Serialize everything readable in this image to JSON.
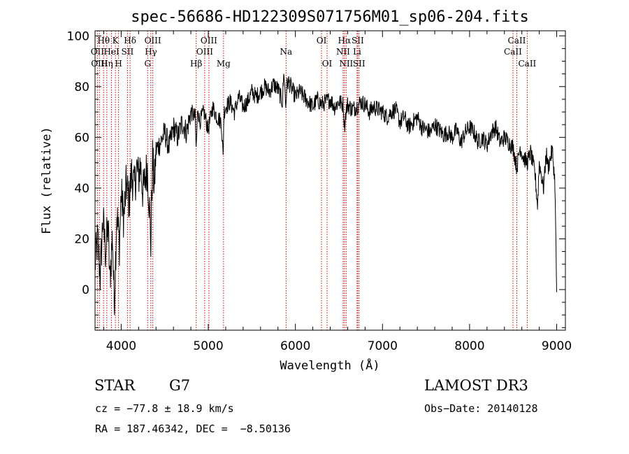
{
  "chart_data": {
    "type": "line",
    "title": "spec-56686-HD122309S071756M01_sp06-204.fits",
    "xlabel": "Wavelength (Å)",
    "ylabel": "Flux (relative)",
    "xlim": [
      3700,
      9100
    ],
    "ylim": [
      -16,
      102
    ],
    "xticks": [
      4000,
      5000,
      6000,
      7000,
      8000,
      9000
    ],
    "yticks": [
      0,
      20,
      40,
      60,
      80,
      100
    ],
    "grid": false,
    "series": [
      {
        "name": "flux",
        "color": "#000000",
        "x": [
          3700,
          3730,
          3760,
          3790,
          3820,
          3850,
          3870,
          3900,
          3920,
          3950,
          3980,
          4000,
          4030,
          4060,
          4090,
          4120,
          4150,
          4180,
          4200,
          4220,
          4250,
          4280,
          4300,
          4320,
          4340,
          4360,
          4380,
          4400,
          4450,
          4500,
          4550,
          4600,
          4650,
          4700,
          4750,
          4800,
          4850,
          4860,
          4880,
          4900,
          4950,
          5000,
          5050,
          5100,
          5150,
          5170,
          5180,
          5200,
          5250,
          5300,
          5350,
          5400,
          5450,
          5500,
          5550,
          5600,
          5650,
          5700,
          5750,
          5800,
          5850,
          5870,
          5890,
          5900,
          5920,
          5950,
          6000,
          6050,
          6100,
          6150,
          6200,
          6250,
          6300,
          6350,
          6400,
          6450,
          6500,
          6550,
          6563,
          6580,
          6600,
          6650,
          6700,
          6750,
          6800,
          6850,
          6900,
          6950,
          7000,
          7050,
          7100,
          7150,
          7200,
          7250,
          7300,
          7350,
          7400,
          7450,
          7500,
          7550,
          7600,
          7650,
          7700,
          7750,
          7800,
          7850,
          7900,
          7950,
          8000,
          8050,
          8100,
          8150,
          8200,
          8250,
          8300,
          8350,
          8400,
          8450,
          8500,
          8542,
          8580,
          8620,
          8662,
          8700,
          8750,
          8780,
          8800,
          8850,
          8880,
          8900,
          8950,
          8980,
          9000
        ],
        "y": [
          10,
          20,
          5,
          28,
          15,
          25,
          3,
          22,
          -6,
          30,
          18,
          38,
          28,
          42,
          35,
          46,
          40,
          48,
          44,
          50,
          38,
          45,
          48,
          35,
          18,
          52,
          40,
          55,
          58,
          62,
          56,
          64,
          60,
          66,
          62,
          70,
          68,
          55,
          72,
          66,
          70,
          63,
          72,
          68,
          66,
          52,
          70,
          72,
          74,
          70,
          76,
          72,
          74,
          78,
          76,
          78,
          80,
          78,
          81,
          79,
          74,
          86,
          72,
          80,
          82,
          80,
          76,
          78,
          76,
          74,
          72,
          75,
          73,
          74,
          75,
          72,
          74,
          73,
          64,
          70,
          73,
          71,
          72,
          74,
          73,
          70,
          72,
          71,
          70,
          68,
          70,
          71,
          66,
          68,
          64,
          66,
          68,
          64,
          63,
          62,
          65,
          63,
          61,
          62,
          60,
          63,
          58,
          62,
          64,
          62,
          58,
          60,
          57,
          62,
          64,
          58,
          60,
          58,
          56,
          48,
          56,
          52,
          50,
          54,
          46,
          33,
          50,
          40,
          54,
          48,
          55,
          42,
          -1
        ]
      }
    ],
    "spectral_lines": [
      {
        "name": "Hθ",
        "wavelength": 3798,
        "row": 1
      },
      {
        "name": "OII",
        "wavelength": 3727,
        "row": 2
      },
      {
        "name": "OIII",
        "wavelength": 3750,
        "row": 3
      },
      {
        "name": "Hη",
        "wavelength": 3835,
        "row": 3
      },
      {
        "name": "K",
        "wavelength": 3934,
        "row": 1
      },
      {
        "name": "HeI",
        "wavelength": 3889,
        "row": 2
      },
      {
        "name": "H",
        "wavelength": 3970,
        "row": 3
      },
      {
        "name": "Hδ",
        "wavelength": 4102,
        "row": 1
      },
      {
        "name": "SII",
        "wavelength": 4072,
        "row": 2
      },
      {
        "name": "OIII",
        "wavelength": 4363,
        "row": 1
      },
      {
        "name": "Hγ",
        "wavelength": 4341,
        "row": 2
      },
      {
        "name": "G",
        "wavelength": 4304,
        "row": 3
      },
      {
        "name": "Hβ",
        "wavelength": 4861,
        "row": 3
      },
      {
        "name": "OIII",
        "wavelength": 5007,
        "row": 1
      },
      {
        "name": "OIII",
        "wavelength": 4959,
        "row": 2
      },
      {
        "name": "Mg",
        "wavelength": 5175,
        "row": 3
      },
      {
        "name": "Na",
        "wavelength": 5893,
        "row": 2
      },
      {
        "name": "OI",
        "wavelength": 6300,
        "row": 1
      },
      {
        "name": "OI",
        "wavelength": 6364,
        "row": 3
      },
      {
        "name": "Hα",
        "wavelength": 6563,
        "row": 1
      },
      {
        "name": "NII",
        "wavelength": 6548,
        "row": 2
      },
      {
        "name": "NII",
        "wavelength": 6583,
        "row": 3
      },
      {
        "name": "SII",
        "wavelength": 6716,
        "row": 1
      },
      {
        "name": "Li",
        "wavelength": 6708,
        "row": 2
      },
      {
        "name": "SII",
        "wavelength": 6731,
        "row": 3
      },
      {
        "name": "CaII",
        "wavelength": 8542,
        "row": 1
      },
      {
        "name": "CaII",
        "wavelength": 8498,
        "row": 2
      },
      {
        "name": "CaII",
        "wavelength": 8662,
        "row": 3
      }
    ]
  },
  "info": {
    "class_label": "STAR",
    "subclass": "G7",
    "cz": "cz = −77.8 ± 18.9 km/s",
    "radec": "RA = 187.46342, DEC =  −8.50136",
    "survey": "LAMOST DR3",
    "obs_date": "Obs−Date: 20140128"
  },
  "colors": {
    "line_marker": "#cc0000",
    "spectrum": "#000000"
  }
}
